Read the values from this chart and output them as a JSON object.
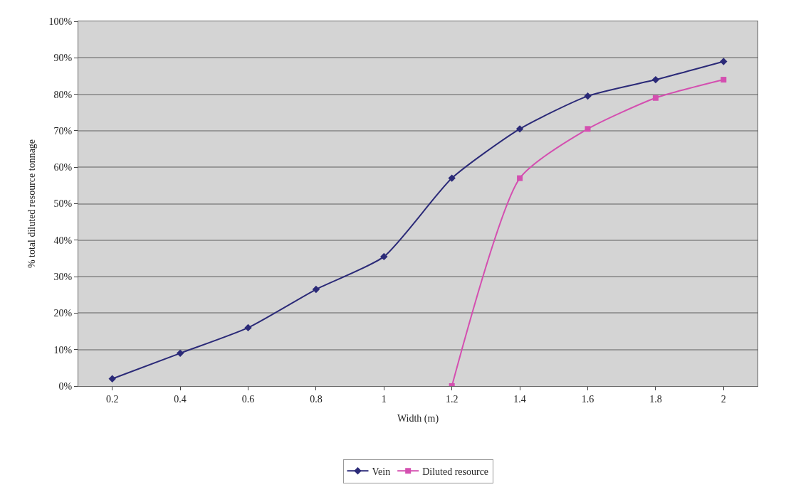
{
  "chart_data": {
    "type": "line",
    "xlabel": "Width (m)",
    "ylabel": "% total diluted resource tonnage",
    "categories": [
      "0.2",
      "0.4",
      "0.6",
      "0.8",
      "1",
      "1.2",
      "1.4",
      "1.6",
      "1.8",
      "2"
    ],
    "series": [
      {
        "name": "Vein",
        "color": "#2b2a78",
        "marker": "diamond",
        "values": [
          2,
          9,
          16,
          26.5,
          35.5,
          57,
          70.5,
          79.5,
          84,
          89
        ]
      },
      {
        "name": "Diluted resource",
        "color": "#d44fb0",
        "marker": "square",
        "values": [
          null,
          null,
          null,
          null,
          null,
          0,
          57,
          70.5,
          79,
          84
        ]
      }
    ],
    "ylim": [
      0,
      100
    ],
    "yticks": [
      {
        "value": 0,
        "label": "0%"
      },
      {
        "value": 10,
        "label": "10%"
      },
      {
        "value": 20,
        "label": "20%"
      },
      {
        "value": 30,
        "label": "30%"
      },
      {
        "value": 40,
        "label": "40%"
      },
      {
        "value": 50,
        "label": "50%"
      },
      {
        "value": 60,
        "label": "60%"
      },
      {
        "value": 70,
        "label": "70%"
      },
      {
        "value": 80,
        "label": "80%"
      },
      {
        "value": 90,
        "label": "90%"
      },
      {
        "value": 100,
        "label": "100%"
      }
    ],
    "grid": "y",
    "legend": "bottom"
  }
}
